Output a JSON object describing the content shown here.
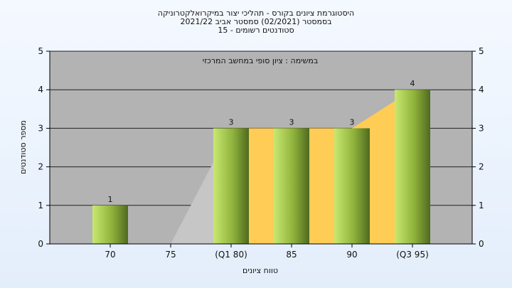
{
  "chart_data": {
    "type": "bar",
    "title_lines": [
      "היסטוגרמת ציונים בקורס - תהליכי יצור במיקרואלקטרוניקה",
      "בסמסטר  (02/2021)  סמסטר אביב 2021/22",
      "סטודנטים רשומים - 15"
    ],
    "annotation": "במשימה : ציון סופי במחשב המרכזי",
    "xlabel": "טווח ציונים",
    "ylabel": "מספר סטודנטים",
    "categories": [
      "70",
      "75",
      "(Q1 80)",
      "85",
      "90",
      "(Q3 95)"
    ],
    "values": [
      1,
      0,
      3,
      3,
      3,
      4
    ],
    "data_labels": [
      "1",
      "",
      "3",
      "3",
      "3",
      "4"
    ],
    "ylim": [
      0,
      5
    ],
    "yticks": [
      "0",
      "1",
      "2",
      "3",
      "4",
      "5"
    ],
    "grid": true,
    "colors": {
      "plot_bg": "#b3b3b3",
      "bar_light": "#c8e870",
      "bar_dark": "#4f6a1f",
      "iqr_band": "#ffcc55",
      "lower_wedge": "#c6c6c6"
    }
  }
}
